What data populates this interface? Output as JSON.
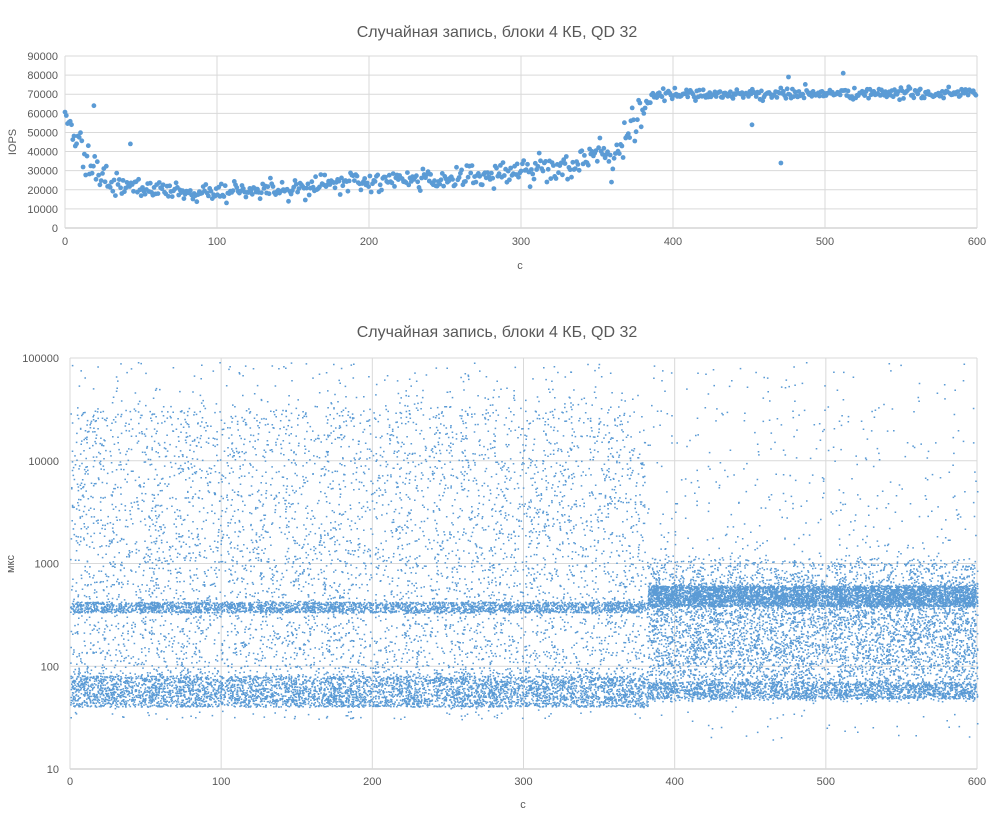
{
  "colors": {
    "series": "#5b9bd5",
    "grid": "#d9d9d9",
    "text": "#595959"
  },
  "chart_data": [
    {
      "type": "scatter",
      "title": "Случайная запись, блоки 4 КБ,  QD 32",
      "xlabel": "с",
      "ylabel": "IOPS",
      "xlim": [
        0,
        600
      ],
      "ylim": [
        0,
        90000
      ],
      "x_ticks": [
        "0",
        "100",
        "200",
        "300",
        "400",
        "500",
        "600"
      ],
      "y_ticks": [
        "0",
        "10000",
        "20000",
        "30000",
        "40000",
        "50000",
        "60000",
        "70000",
        "80000",
        "90000"
      ],
      "grid": true,
      "legend": "none",
      "series": [
        {
          "profile_x": [
            0,
            3,
            8,
            15,
            22,
            30,
            45,
            60,
            80,
            100,
            130,
            160,
            200,
            240,
            280,
            300,
            330,
            350,
            362,
            370,
            378,
            385,
            395,
            600
          ],
          "profile_y": [
            58000,
            55000,
            48000,
            38000,
            28000,
            23000,
            21000,
            20000,
            19000,
            18500,
            20000,
            22000,
            24000,
            25500,
            28000,
            30000,
            33000,
            36000,
            40000,
            48000,
            58000,
            68000,
            70000,
            70500
          ],
          "outliers_x": [
            19,
            43,
            452,
            471,
            476,
            512
          ],
          "outliers_y": [
            64000,
            44000,
            54000,
            34000,
            79000,
            81000
          ]
        }
      ]
    },
    {
      "type": "scatter",
      "title": "Случайная запись, блоки 4 КБ,  QD 32",
      "xlabel": "с",
      "ylabel": "мкс",
      "xlim": [
        0,
        600
      ],
      "ylim": [
        10,
        100000
      ],
      "y_scale": "log",
      "x_ticks": [
        "0",
        "100",
        "200",
        "300",
        "400",
        "500",
        "600"
      ],
      "y_ticks": [
        "10",
        "100",
        "1000",
        "10000",
        "100000"
      ],
      "grid": true,
      "legend": "none",
      "series": [
        {
          "phase_boundary_x": 382,
          "phase1_bands_us": [
            [
              40,
              80
            ],
            [
              330,
              420
            ],
            [
              80,
              30000
            ]
          ],
          "phase2_bands_us": [
            [
              380,
              600
            ],
            [
              45,
              380
            ]
          ]
        }
      ]
    }
  ]
}
